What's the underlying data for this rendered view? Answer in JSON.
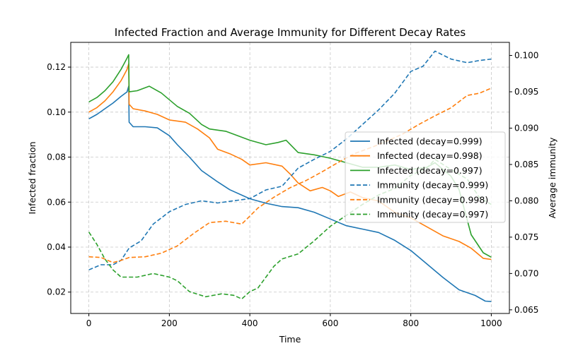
{
  "chart_data": {
    "type": "line",
    "title": "Infected Fraction and Average Immunity for Different Decay Rates",
    "xlabel": "Time",
    "ylabel_left": "Infected fraction",
    "ylabel_right": "Average immunity",
    "xlim": [
      -45,
      1045
    ],
    "ylim_left": [
      0.0105,
      0.131
    ],
    "ylim_right": [
      0.0645,
      0.1018
    ],
    "x_ticks": [
      0,
      200,
      400,
      600,
      800,
      1000
    ],
    "y_ticks_left": [
      0.02,
      0.04,
      0.06,
      0.08,
      0.1,
      0.12
    ],
    "y_ticks_right": [
      0.065,
      0.07,
      0.075,
      0.08,
      0.085,
      0.09,
      0.095,
      0.1
    ],
    "grid": true,
    "legend_position": "center-right",
    "series": [
      {
        "name": "Infected (decay=0.999)",
        "axis": "left",
        "style": "solid",
        "color": "#1f77b4",
        "points": [
          [
            0,
            0.097
          ],
          [
            20,
            0.099
          ],
          [
            40,
            0.1015
          ],
          [
            60,
            0.104
          ],
          [
            80,
            0.107
          ],
          [
            95,
            0.109
          ],
          [
            99,
            0.1115
          ],
          [
            100,
            0.0955
          ],
          [
            110,
            0.0935
          ],
          [
            140,
            0.0935
          ],
          [
            170,
            0.093
          ],
          [
            200,
            0.0895
          ],
          [
            220,
            0.0855
          ],
          [
            250,
            0.08
          ],
          [
            280,
            0.074
          ],
          [
            320,
            0.069
          ],
          [
            350,
            0.0655
          ],
          [
            400,
            0.0615
          ],
          [
            440,
            0.0595
          ],
          [
            480,
            0.058
          ],
          [
            520,
            0.0575
          ],
          [
            560,
            0.0555
          ],
          [
            600,
            0.0525
          ],
          [
            640,
            0.0495
          ],
          [
            680,
            0.048
          ],
          [
            720,
            0.0465
          ],
          [
            760,
            0.043
          ],
          [
            800,
            0.0385
          ],
          [
            840,
            0.0325
          ],
          [
            880,
            0.0265
          ],
          [
            920,
            0.021
          ],
          [
            960,
            0.0185
          ],
          [
            985,
            0.016
          ],
          [
            1000,
            0.0158
          ]
        ]
      },
      {
        "name": "Infected (decay=0.998)",
        "axis": "left",
        "style": "solid",
        "color": "#ff7f0e",
        "points": [
          [
            0,
            0.1
          ],
          [
            20,
            0.102
          ],
          [
            40,
            0.105
          ],
          [
            60,
            0.109
          ],
          [
            80,
            0.114
          ],
          [
            95,
            0.119
          ],
          [
            99,
            0.1215
          ],
          [
            100,
            0.1035
          ],
          [
            110,
            0.1015
          ],
          [
            140,
            0.1005
          ],
          [
            170,
            0.099
          ],
          [
            200,
            0.0965
          ],
          [
            240,
            0.0955
          ],
          [
            270,
            0.0925
          ],
          [
            300,
            0.0885
          ],
          [
            320,
            0.0835
          ],
          [
            350,
            0.0815
          ],
          [
            380,
            0.079
          ],
          [
            400,
            0.0765
          ],
          [
            440,
            0.0775
          ],
          [
            480,
            0.076
          ],
          [
            500,
            0.0725
          ],
          [
            520,
            0.0685
          ],
          [
            550,
            0.065
          ],
          [
            580,
            0.0665
          ],
          [
            600,
            0.065
          ],
          [
            620,
            0.0625
          ],
          [
            650,
            0.0645
          ],
          [
            680,
            0.062
          ],
          [
            720,
            0.0605
          ],
          [
            760,
            0.0555
          ],
          [
            800,
            0.053
          ],
          [
            840,
            0.049
          ],
          [
            880,
            0.045
          ],
          [
            920,
            0.0425
          ],
          [
            950,
            0.0395
          ],
          [
            980,
            0.035
          ],
          [
            1000,
            0.0345
          ]
        ]
      },
      {
        "name": "Infected (decay=0.997)",
        "axis": "left",
        "style": "solid",
        "color": "#2ca02c",
        "points": [
          [
            0,
            0.1045
          ],
          [
            20,
            0.1065
          ],
          [
            40,
            0.1095
          ],
          [
            60,
            0.1135
          ],
          [
            80,
            0.119
          ],
          [
            95,
            0.124
          ],
          [
            99,
            0.1255
          ],
          [
            100,
            0.109
          ],
          [
            120,
            0.1095
          ],
          [
            150,
            0.1115
          ],
          [
            180,
            0.1085
          ],
          [
            200,
            0.1055
          ],
          [
            220,
            0.1025
          ],
          [
            250,
            0.0995
          ],
          [
            280,
            0.0945
          ],
          [
            300,
            0.0925
          ],
          [
            340,
            0.0915
          ],
          [
            370,
            0.0895
          ],
          [
            400,
            0.0875
          ],
          [
            440,
            0.0855
          ],
          [
            470,
            0.0865
          ],
          [
            490,
            0.0875
          ],
          [
            520,
            0.082
          ],
          [
            560,
            0.081
          ],
          [
            600,
            0.0795
          ],
          [
            640,
            0.0775
          ],
          [
            680,
            0.0755
          ],
          [
            720,
            0.0755
          ],
          [
            760,
            0.0765
          ],
          [
            800,
            0.0745
          ],
          [
            840,
            0.0755
          ],
          [
            860,
            0.0775
          ],
          [
            900,
            0.0715
          ],
          [
            920,
            0.0655
          ],
          [
            950,
            0.0455
          ],
          [
            980,
            0.0375
          ],
          [
            1000,
            0.0355
          ]
        ]
      },
      {
        "name": "Immunity (decay=0.999)",
        "axis": "right",
        "style": "dashed",
        "color": "#1f77b4",
        "points": [
          [
            0,
            0.0705
          ],
          [
            30,
            0.0712
          ],
          [
            60,
            0.0712
          ],
          [
            80,
            0.0718
          ],
          [
            100,
            0.0735
          ],
          [
            130,
            0.0745
          ],
          [
            160,
            0.0768
          ],
          [
            200,
            0.0785
          ],
          [
            240,
            0.0795
          ],
          [
            280,
            0.08
          ],
          [
            320,
            0.0797
          ],
          [
            360,
            0.08
          ],
          [
            400,
            0.0803
          ],
          [
            440,
            0.0815
          ],
          [
            480,
            0.082
          ],
          [
            520,
            0.0845
          ],
          [
            560,
            0.0857
          ],
          [
            600,
            0.0868
          ],
          [
            640,
            0.0885
          ],
          [
            680,
            0.0905
          ],
          [
            720,
            0.0925
          ],
          [
            760,
            0.0948
          ],
          [
            800,
            0.0978
          ],
          [
            830,
            0.0985
          ],
          [
            860,
            0.1006
          ],
          [
            900,
            0.0995
          ],
          [
            940,
            0.099
          ],
          [
            970,
            0.0993
          ],
          [
            1000,
            0.0995
          ]
        ]
      },
      {
        "name": "Immunity (decay=0.998)",
        "axis": "right",
        "style": "dashed",
        "color": "#ff7f0e",
        "points": [
          [
            0,
            0.0723
          ],
          [
            30,
            0.0722
          ],
          [
            60,
            0.0715
          ],
          [
            80,
            0.0718
          ],
          [
            100,
            0.0722
          ],
          [
            140,
            0.0723
          ],
          [
            180,
            0.0728
          ],
          [
            220,
            0.0738
          ],
          [
            260,
            0.0755
          ],
          [
            300,
            0.077
          ],
          [
            340,
            0.0772
          ],
          [
            380,
            0.0768
          ],
          [
            420,
            0.079
          ],
          [
            460,
            0.0805
          ],
          [
            500,
            0.0818
          ],
          [
            540,
            0.0828
          ],
          [
            580,
            0.084
          ],
          [
            620,
            0.0853
          ],
          [
            660,
            0.0865
          ],
          [
            700,
            0.0873
          ],
          [
            740,
            0.0882
          ],
          [
            780,
            0.0892
          ],
          [
            820,
            0.0905
          ],
          [
            860,
            0.0917
          ],
          [
            900,
            0.0928
          ],
          [
            940,
            0.0945
          ],
          [
            970,
            0.0948
          ],
          [
            1000,
            0.0955
          ]
        ]
      },
      {
        "name": "Immunity (decay=0.997)",
        "axis": "right",
        "style": "dashed",
        "color": "#2ca02c",
        "points": [
          [
            0,
            0.0757
          ],
          [
            20,
            0.074
          ],
          [
            40,
            0.072
          ],
          [
            60,
            0.0705
          ],
          [
            80,
            0.0695
          ],
          [
            120,
            0.0695
          ],
          [
            160,
            0.07
          ],
          [
            200,
            0.0695
          ],
          [
            220,
            0.069
          ],
          [
            250,
            0.0675
          ],
          [
            290,
            0.0668
          ],
          [
            330,
            0.0672
          ],
          [
            360,
            0.067
          ],
          [
            380,
            0.0665
          ],
          [
            400,
            0.0675
          ],
          [
            420,
            0.068
          ],
          [
            440,
            0.0695
          ],
          [
            460,
            0.071
          ],
          [
            480,
            0.072
          ],
          [
            520,
            0.0727
          ],
          [
            560,
            0.0745
          ],
          [
            600,
            0.0765
          ],
          [
            640,
            0.078
          ],
          [
            680,
            0.0795
          ],
          [
            720,
            0.0808
          ],
          [
            760,
            0.0817
          ],
          [
            800,
            0.0835
          ],
          [
            840,
            0.0845
          ],
          [
            860,
            0.0857
          ],
          [
            900,
            0.0843
          ],
          [
            940,
            0.083
          ],
          [
            970,
            0.0805
          ],
          [
            1000,
            0.0795
          ]
        ]
      }
    ]
  }
}
